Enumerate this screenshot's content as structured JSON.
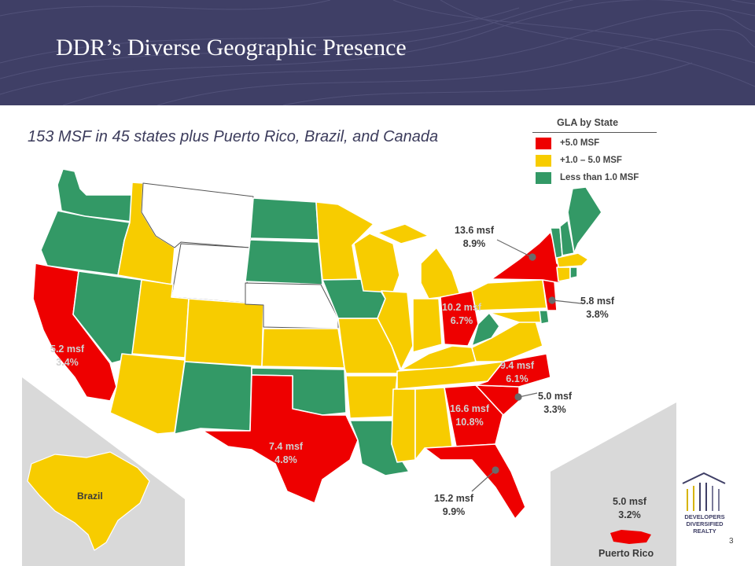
{
  "title": "DDR’s Diverse Geographic Presence",
  "subtitle": "153 MSF in 45 states plus Puerto Rico, Brazil, and Canada",
  "colors": {
    "header": "#3f3f66",
    "large": "#ee0000",
    "medium": "#f7cc00",
    "small": "#339966",
    "none": "#ffffff",
    "inset_bg": "#d9d9d9"
  },
  "legend": {
    "title": "GLA by State",
    "items": [
      {
        "label": "+5.0 MSF",
        "color": "#ee0000"
      },
      {
        "label": "+1.0 – 5.0  MSF",
        "color": "#f7cc00"
      },
      {
        "label": "Less than 1.0 MSF",
        "color": "#339966"
      }
    ]
  },
  "annotations": {
    "new_york": {
      "msf": "13.6 msf",
      "pct": "8.9%"
    },
    "new_jersey": {
      "msf": "5.8 msf",
      "pct": "3.8%"
    },
    "ohio": {
      "msf": "10.2 msf",
      "pct": "6.7%"
    },
    "california": {
      "msf": "5.2 msf",
      "pct": "3.4%"
    },
    "north_carolina": {
      "msf": "9.4 msf",
      "pct": "6.1%"
    },
    "south_carolina": {
      "msf": "5.0 msf",
      "pct": "3.3%"
    },
    "georgia": {
      "msf": "16.6 msf",
      "pct": "10.8%"
    },
    "texas": {
      "msf": "7.4 msf",
      "pct": "4.8%"
    },
    "florida": {
      "msf": "15.2 msf",
      "pct": "9.9%"
    },
    "puerto_rico": {
      "msf": "5.0 msf",
      "pct": "3.2%"
    }
  },
  "insets": {
    "brazil": "Brazil",
    "puerto_rico": "Puerto Rico"
  },
  "logo_text": [
    "DEVELOPERS",
    "DIVERSIFIED",
    "REALTY"
  ],
  "page_number": "3"
}
